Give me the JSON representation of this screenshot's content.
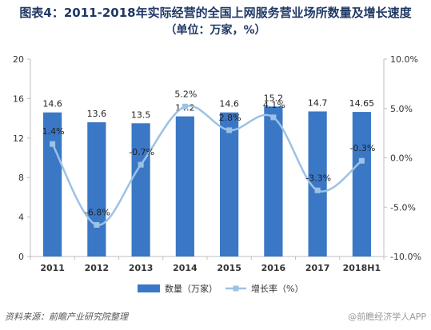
{
  "title": "图表4：2011-2018年实际经营的全国上网服务营业场所数量及增长速度",
  "subtitle": "（单位：万家，%）",
  "source": "资料来源：前瞻产业研究院整理",
  "watermark": "@前瞻经济学人APP",
  "colors": {
    "bar": "#3a78c6",
    "line": "#9cc2e5",
    "axis": "#bfbfbf",
    "grid": "#e5e5e5"
  },
  "chart_data": {
    "type": "bar",
    "categories": [
      "2011",
      "2012",
      "2013",
      "2014",
      "2015",
      "2016",
      "2017",
      "2018H1"
    ],
    "series": [
      {
        "name": "数量（万家）",
        "type": "bar",
        "axis": "left",
        "values": [
          14.6,
          13.6,
          13.5,
          14.2,
          14.6,
          15.2,
          14.7,
          14.65
        ],
        "labels": [
          "14.6",
          "13.6",
          "13.5",
          "14.2",
          "14.6",
          "15.2",
          "14.7",
          "14.65"
        ]
      },
      {
        "name": "增长率（%）",
        "type": "line",
        "axis": "right",
        "values": [
          1.4,
          -6.8,
          -0.7,
          5.2,
          2.8,
          4.1,
          -3.3,
          -0.3
        ],
        "labels": [
          "1.4%",
          "-6.8%",
          "-0.7%",
          "5.2%",
          "2.8%",
          "4.1%",
          "-3.3%",
          "-0.3%"
        ]
      }
    ],
    "y_left": {
      "min": 0,
      "max": 20,
      "ticks": [
        0,
        4,
        8,
        12,
        16,
        20
      ],
      "tick_labels": [
        "0",
        "4",
        "8",
        "12",
        "16",
        "20"
      ]
    },
    "y_right": {
      "min": -10,
      "max": 10,
      "ticks": [
        -10,
        -5,
        0,
        5,
        10
      ],
      "tick_labels": [
        "-10.0%",
        "-5.0%",
        "0.0%",
        "5.0%",
        "10.0%"
      ]
    },
    "legend_position": "bottom",
    "grid": false
  }
}
